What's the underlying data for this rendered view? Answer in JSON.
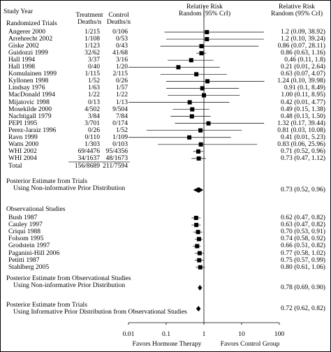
{
  "header": {
    "study_year": "Study Year",
    "treatment_1": "Treatment",
    "treatment_2": "Deaths/n",
    "control_1": "Control",
    "control_2": "Deaths/n",
    "rr_1": "Relative Risk",
    "rr_2": "Random (95% CrI)",
    "rr_right_1": "Relative Risk",
    "rr_right_2": "Random (95% CrI)"
  },
  "sections": {
    "randomized": "Randomized Trials",
    "post_trials_1": "Posterior Estimate from Trials",
    "post_trials_2": "Using Non-informative Prior Distribution",
    "observational": "Observational Studies",
    "post_obs_1": "Posterior Estimate from Observational Studies",
    "post_obs_2": "Using Non-informative Prior Distribution",
    "post_inf_1": "Posterior Estimate from Trials",
    "post_inf_2": "Using Informative Prior Distribution from Observational Studies"
  },
  "footer": {
    "favors_left": "Favors Hormone Therapy",
    "favors_right": "Favors Control Group"
  },
  "chart_data": {
    "type": "forest",
    "x_scale": "log",
    "xlim": [
      0.01,
      100
    ],
    "reference_line": 1,
    "x_ticks": [
      "0.01",
      "0.1",
      "1",
      "10",
      "100"
    ],
    "randomized_trials": [
      {
        "study": "Angerer 2000",
        "treatment": "1/215",
        "control": "0/106",
        "rr": 1.2,
        "lo": 0.09,
        "hi": 38.92,
        "label": "1.2 (0.09, 38.92)"
      },
      {
        "study": "Arrehrecht 2002",
        "treatment": "1/108",
        "control": "0/53",
        "rr": 1.2,
        "lo": 0.1,
        "hi": 39.24,
        "label": "1.2 (0.10, 39.24)"
      },
      {
        "study": "Giske 2002",
        "treatment": "1/123",
        "control": "0/43",
        "rr": 0.86,
        "lo": 0.07,
        "hi": 28.11,
        "label": "0.86 (0.07, 28.11)"
      },
      {
        "study": "Guidozzi 1999",
        "treatment": "32/62",
        "control": "41/68",
        "rr": 0.86,
        "lo": 0.63,
        "hi": 1.16,
        "label": "0.86 (0.63, 1.16)"
      },
      {
        "study": "Hall 1994",
        "treatment": "3/37",
        "control": "3/16",
        "rr": 0.46,
        "lo": 0.11,
        "hi": 1.8,
        "label": "0.46 (0.11, 1.8)"
      },
      {
        "study": "Hall 1998",
        "treatment": "0/40",
        "control": "1/20",
        "rr": 0.21,
        "lo": 0.01,
        "hi": 2.64,
        "label": "0.21 (0.01, 2.64)"
      },
      {
        "study": "Komulainen 1999",
        "treatment": "1/115",
        "control": "2/115",
        "rr": 0.63,
        "lo": 0.07,
        "hi": 4.07,
        "label": "0.63 (0.07, 4.07)"
      },
      {
        "study": "Kyllonen 1998",
        "treatment": "1/52",
        "control": "0/26",
        "rr": 1.24,
        "lo": 0.1,
        "hi": 39.98,
        "label": "1.24 (0.10, 39.98)"
      },
      {
        "study": "Lindsay 1976",
        "treatment": "1/63",
        "control": "1/57",
        "rr": 0.91,
        "lo": 0.1,
        "hi": 8.49,
        "label": "0.91 (0.1, 8.49)"
      },
      {
        "study": "MacDonald 1994",
        "treatment": "1/22",
        "control": "1/22",
        "rr": 1.0,
        "lo": 0.11,
        "hi": 8.95,
        "label": "1.00 (0.11, 8.95)"
      },
      {
        "study": "Mijatovic 1998",
        "treatment": "0/13",
        "control": "1/13",
        "rr": 0.42,
        "lo": 0.01,
        "hi": 4.77,
        "label": "0.42 (0.01, 4.77)"
      },
      {
        "study": "Mosekilde 2000",
        "treatment": "4/502",
        "control": "9/504",
        "rr": 0.49,
        "lo": 0.15,
        "hi": 1.38,
        "label": "0.49 (0.15, 1.38)"
      },
      {
        "study": "Nachtigall 1979",
        "treatment": "3/84",
        "control": "7/84",
        "rr": 0.48,
        "lo": 0.13,
        "hi": 1.5,
        "label": "0.48 (0.13, 1.50)"
      },
      {
        "study": "PEPI 1995",
        "treatment": "3/701",
        "control": "0/174",
        "rr": 1.32,
        "lo": 0.17,
        "hi": 39.44,
        "label": "1.32 (0.17, 39.44)"
      },
      {
        "study": "Perez-Jaraiz 1996",
        "treatment": "0/26",
        "control": "1/52",
        "rr": 0.81,
        "lo": 0.03,
        "hi": 10.08,
        "label": "0.81 (0.03, 10.08)"
      },
      {
        "study": "Ravn 1999",
        "treatment": "0/110",
        "control": "1/109",
        "rr": 0.41,
        "lo": 0.01,
        "hi": 5.23,
        "label": "0.41 (0.01, 5.23)"
      },
      {
        "study": "Watts 2000",
        "treatment": "1/303",
        "control": "0/103",
        "rr": 0.83,
        "lo": 0.06,
        "hi": 25.96,
        "label": "0.83 (0.06, 25.96)"
      },
      {
        "study": "WHI 2002",
        "treatment": "69/4476",
        "control": "95/4356",
        "rr": 0.71,
        "lo": 0.52,
        "hi": 0.96,
        "label": "0.71 (0.52, 0.96)"
      },
      {
        "study": "WHI 2004",
        "treatment": "34/1637",
        "control": "48/1673",
        "rr": 0.73,
        "lo": 0.47,
        "hi": 1.12,
        "label": "0.73 (0.47, 1.12)"
      }
    ],
    "total": {
      "study": "Total",
      "treatment": "156/8689",
      "control": "211/7594"
    },
    "posterior_trials": {
      "rr": 0.73,
      "lo": 0.52,
      "hi": 0.96,
      "label": "0.73 (0.52, 0.96)"
    },
    "observational_studies": [
      {
        "study": "Bush 1987",
        "rr": 0.62,
        "lo": 0.47,
        "hi": 0.82,
        "label": "0.62 (0.47, 0.82)"
      },
      {
        "study": "Cauley 1997",
        "rr": 0.63,
        "lo": 0.47,
        "hi": 0.82,
        "label": "0.63 (0.47, 0.82)"
      },
      {
        "study": "Criqui 1988",
        "rr": 0.7,
        "lo": 0.53,
        "hi": 0.91,
        "label": "0.70 (0.53, 0.91)"
      },
      {
        "study": "Folsom 1995",
        "rr": 0.74,
        "lo": 0.58,
        "hi": 0.92,
        "label": "0.74 (0.58, 0.92)"
      },
      {
        "study": "Grodstein 1997",
        "rr": 0.66,
        "lo": 0.51,
        "hi": 0.82,
        "label": "0.66 (0.51, 0.82)"
      },
      {
        "study": "Paganini-Hill 2006",
        "rr": 0.77,
        "lo": 0.58,
        "hi": 1.02,
        "label": "0.77 (0.58, 1.02)"
      },
      {
        "study": "Petitti 1987",
        "rr": 0.75,
        "lo": 0.57,
        "hi": 0.99,
        "label": "0.75 (0.57, 0.99)"
      },
      {
        "study": "Stahlberg 2005",
        "rr": 0.8,
        "lo": 0.61,
        "hi": 1.06,
        "label": "0.80 (0.61, 1.06)"
      }
    ],
    "posterior_observational": {
      "rr": 0.78,
      "lo": 0.69,
      "hi": 0.9,
      "label": "0.78 (0.69, 0.90)"
    },
    "posterior_informative": {
      "rr": 0.72,
      "lo": 0.62,
      "hi": 0.82,
      "label": "0.72 (0.62, 0.82)"
    }
  }
}
